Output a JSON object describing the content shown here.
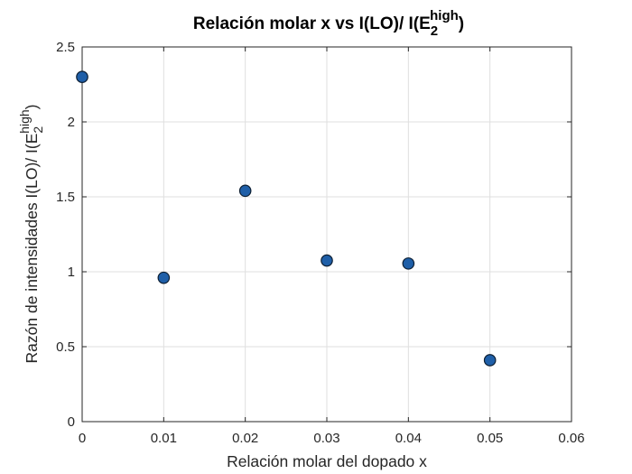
{
  "chart_data": {
    "type": "scatter",
    "title": {
      "prefix": "Relación molar x  vs  I(LO)/ I(E",
      "sub": "2",
      "sup": "high",
      "suffix": ")"
    },
    "xlabel": "Relación molar del dopado x",
    "ylabel": {
      "prefix": "Razón de intensidades I(LO)/ I(E",
      "sub": "2",
      "sup": "high",
      "suffix": ")"
    },
    "xlim": [
      0,
      0.06
    ],
    "ylim": [
      0,
      2.5
    ],
    "xticks": [
      {
        "value": 0,
        "label": "0"
      },
      {
        "value": 0.01,
        "label": "0.01"
      },
      {
        "value": 0.02,
        "label": "0.02"
      },
      {
        "value": 0.03,
        "label": "0.03"
      },
      {
        "value": 0.04,
        "label": "0.04"
      },
      {
        "value": 0.05,
        "label": "0.05"
      },
      {
        "value": 0.06,
        "label": "0.06"
      }
    ],
    "yticks": [
      {
        "value": 0,
        "label": "0"
      },
      {
        "value": 0.5,
        "label": "0.5"
      },
      {
        "value": 1,
        "label": "1"
      },
      {
        "value": 1.5,
        "label": "1.5"
      },
      {
        "value": 2,
        "label": "2"
      },
      {
        "value": 2.5,
        "label": "2.5"
      }
    ],
    "grid": true,
    "series": [
      {
        "points": [
          {
            "x": 0,
            "y": 2.3
          },
          {
            "x": 0.01,
            "y": 0.96
          },
          {
            "x": 0.02,
            "y": 1.54
          },
          {
            "x": 0.03,
            "y": 1.075
          },
          {
            "x": 0.04,
            "y": 1.055
          },
          {
            "x": 0.05,
            "y": 0.41
          }
        ],
        "marker_fill": "#1f5fa8",
        "marker_edge": "#0d1f33"
      }
    ]
  }
}
